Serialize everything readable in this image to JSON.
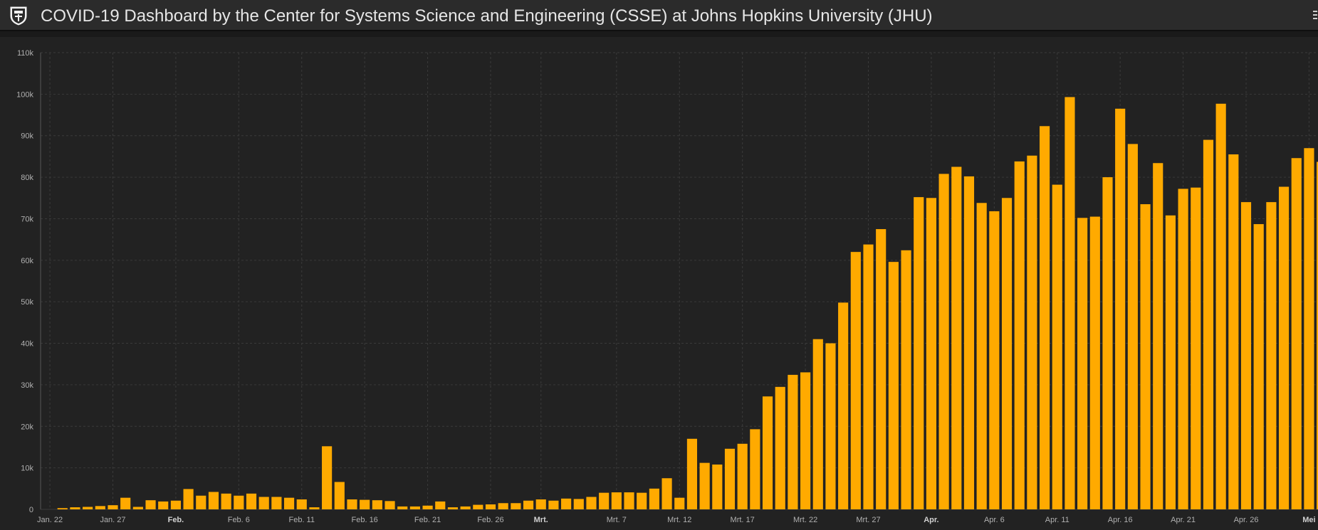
{
  "header": {
    "title": "COVID-19 Dashboard by the Center for Systems Science and Engineering (CSSE) at Johns Hopkins University (JHU)",
    "logo_icon": "jhu-shield-icon",
    "menu_icon": "more-options-icon"
  },
  "colors": {
    "bar": "#ffaa00",
    "background": "#222222",
    "grid": "#3a3a3a"
  },
  "chart_data": {
    "type": "bar",
    "title": "",
    "xlabel": "",
    "ylabel": "",
    "ylim": [
      0,
      110000
    ],
    "grid": true,
    "y_ticks": [
      "0",
      "10k",
      "20k",
      "30k",
      "40k",
      "50k",
      "60k",
      "70k",
      "80k",
      "90k",
      "100k",
      "110k"
    ],
    "x_start_label": "Jan. 22",
    "x_ticks": [
      {
        "index": 0,
        "label": "Jan. 22",
        "bold": false
      },
      {
        "index": 5,
        "label": "Jan. 27",
        "bold": false
      },
      {
        "index": 10,
        "label": "Feb.",
        "bold": true
      },
      {
        "index": 15,
        "label": "Feb. 6",
        "bold": false
      },
      {
        "index": 20,
        "label": "Feb. 11",
        "bold": false
      },
      {
        "index": 25,
        "label": "Feb. 16",
        "bold": false
      },
      {
        "index": 30,
        "label": "Feb. 21",
        "bold": false
      },
      {
        "index": 35,
        "label": "Feb. 26",
        "bold": false
      },
      {
        "index": 39,
        "label": "Mrt.",
        "bold": true
      },
      {
        "index": 45,
        "label": "Mrt. 7",
        "bold": false
      },
      {
        "index": 50,
        "label": "Mrt. 12",
        "bold": false
      },
      {
        "index": 55,
        "label": "Mrt. 17",
        "bold": false
      },
      {
        "index": 60,
        "label": "Mrt. 22",
        "bold": false
      },
      {
        "index": 65,
        "label": "Mrt. 27",
        "bold": false
      },
      {
        "index": 70,
        "label": "Apr.",
        "bold": true
      },
      {
        "index": 75,
        "label": "Apr. 6",
        "bold": false
      },
      {
        "index": 80,
        "label": "Apr. 11",
        "bold": false
      },
      {
        "index": 85,
        "label": "Apr. 16",
        "bold": false
      },
      {
        "index": 90,
        "label": "Apr. 21",
        "bold": false
      },
      {
        "index": 95,
        "label": "Apr. 26",
        "bold": false
      },
      {
        "index": 100,
        "label": "Mei",
        "bold": true
      }
    ],
    "values": [
      0,
      300,
      500,
      600,
      800,
      1000,
      2800,
      600,
      2200,
      1900,
      2100,
      4900,
      3300,
      4200,
      3800,
      3300,
      3800,
      3000,
      3000,
      2800,
      2400,
      500,
      15200,
      6600,
      2400,
      2300,
      2200,
      2000,
      700,
      700,
      900,
      1900,
      500,
      700,
      1100,
      1200,
      1500,
      1500,
      2100,
      2400,
      2100,
      2600,
      2500,
      3000,
      4000,
      4100,
      4100,
      4000,
      5000,
      7500,
      2800,
      17000,
      11200,
      10800,
      14600,
      15800,
      19300,
      27200,
      29500,
      32400,
      33000,
      41000,
      40000,
      49800,
      62000,
      63800,
      67500,
      59600,
      62400,
      75200,
      75000,
      80800,
      82500,
      80200,
      73800,
      71800,
      75000,
      83800,
      85200,
      92300,
      78200,
      99300,
      70200,
      70500,
      80000,
      96500,
      88000,
      73500,
      83400,
      70800,
      77200,
      77500,
      89000,
      97700,
      85500,
      74000,
      68700,
      74000,
      77700,
      84600,
      87000,
      83700
    ]
  }
}
